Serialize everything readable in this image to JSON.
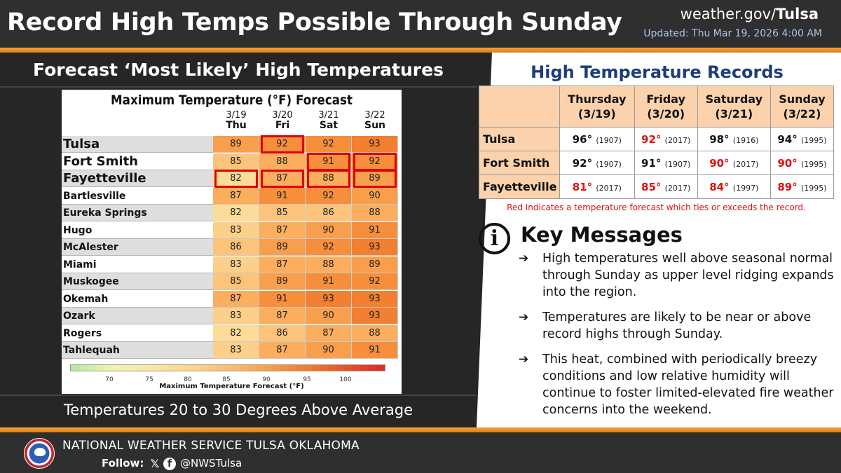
{
  "header": {
    "title": "Record High Temps Possible Through Sunday",
    "site_prefix": "weather.gov/",
    "site_office": "Tulsa",
    "updated": "Updated: Thu Mar 19, 2026 4:00 AM"
  },
  "left": {
    "heading": "Forecast ‘Most Likely’ High Temperatures",
    "footer": "Temperatures 20 to 30 Degrees Above Average"
  },
  "chart_data": {
    "type": "table",
    "title": "Maximum Temperature (°F) Forecast",
    "days": [
      {
        "date": "3/19",
        "day": "Thu"
      },
      {
        "date": "3/20",
        "day": "Fri"
      },
      {
        "date": "3/21",
        "day": "Sat"
      },
      {
        "date": "3/22",
        "day": "Sun"
      }
    ],
    "rows": [
      {
        "city": "Tulsa",
        "values": [
          89,
          92,
          92,
          93
        ]
      },
      {
        "city": "Fort Smith",
        "values": [
          85,
          88,
          91,
          92
        ]
      },
      {
        "city": "Fayetteville",
        "values": [
          82,
          87,
          88,
          89
        ]
      },
      {
        "city": "Bartlesville",
        "values": [
          87,
          91,
          92,
          90
        ]
      },
      {
        "city": "Eureka Springs",
        "values": [
          82,
          85,
          86,
          88
        ]
      },
      {
        "city": "Hugo",
        "values": [
          83,
          87,
          90,
          91
        ]
      },
      {
        "city": "McAlester",
        "values": [
          86,
          89,
          92,
          93
        ]
      },
      {
        "city": "Miami",
        "values": [
          83,
          87,
          88,
          89
        ]
      },
      {
        "city": "Muskogee",
        "values": [
          85,
          89,
          91,
          92
        ]
      },
      {
        "city": "Okemah",
        "values": [
          87,
          91,
          93,
          93
        ]
      },
      {
        "city": "Ozark",
        "values": [
          83,
          87,
          90,
          93
        ]
      },
      {
        "city": "Rogers",
        "values": [
          82,
          86,
          87,
          88
        ]
      },
      {
        "city": "Tahlequah",
        "values": [
          83,
          87,
          90,
          91
        ]
      }
    ],
    "record_highlights": [
      [
        0,
        1
      ],
      [
        1,
        2
      ],
      [
        1,
        3
      ],
      [
        2,
        0
      ],
      [
        2,
        1
      ],
      [
        2,
        2
      ],
      [
        2,
        3
      ]
    ],
    "scale_ticks": [
      "70",
      "75",
      "80",
      "85",
      "90",
      "95",
      "100"
    ],
    "scale_label": "Maximum Temperature Forecast (°F)",
    "colors": {
      "highlight": "#e00000"
    }
  },
  "records": {
    "title": "High Temperature Records",
    "headers": [
      {
        "line1": "Thursday",
        "line2": "(3/19)"
      },
      {
        "line1": "Friday",
        "line2": "(3/20)"
      },
      {
        "line1": "Saturday",
        "line2": "(3/21)"
      },
      {
        "line1": "Sunday",
        "line2": "(3/22)"
      }
    ],
    "rows": [
      {
        "city": "Tulsa",
        "cells": [
          {
            "temp": "96°",
            "year": "(1907)",
            "red": false
          },
          {
            "temp": "92°",
            "year": "(2017)",
            "red": true
          },
          {
            "temp": "98°",
            "year": "(1916)",
            "red": false
          },
          {
            "temp": "94°",
            "year": "(1995)",
            "red": false
          }
        ]
      },
      {
        "city": "Fort Smith",
        "cells": [
          {
            "temp": "92°",
            "year": "(1907)",
            "red": false
          },
          {
            "temp": "91°",
            "year": "(1907)",
            "red": false
          },
          {
            "temp": "90°",
            "year": "(2017)",
            "red": true
          },
          {
            "temp": "90°",
            "year": "(1995)",
            "red": true
          }
        ]
      },
      {
        "city": "Fayetteville",
        "cells": [
          {
            "temp": "81°",
            "year": "(2017)",
            "red": true
          },
          {
            "temp": "85°",
            "year": "(2017)",
            "red": true
          },
          {
            "temp": "84°",
            "year": "(1997)",
            "red": true
          },
          {
            "temp": "89°",
            "year": "(1995)",
            "red": true
          }
        ]
      }
    ],
    "note": "Red Indicates a temperature forecast which ties or exceeds the record."
  },
  "key_messages": {
    "icon": "info-icon",
    "title": "Key Messages",
    "items": [
      "High temperatures well above seasonal normal through Sunday as upper level ridging expands into the region.",
      "Temperatures are likely to be near or above record highs through Sunday.",
      "This heat, combined with periodically breezy conditions and low relative humidity will continue to foster limited-elevated fire weather concerns into the weekend."
    ]
  },
  "footer": {
    "org": "NATIONAL WEATHER SERVICE TULSA OKLAHOMA",
    "follow": "Follow:",
    "handle": "@NWSTulsa"
  },
  "colors": {
    "accent_orange": "#f08a1e",
    "records_title": "#1d3d7a",
    "record_red": "#e01010",
    "table_header": "#fbd2ab"
  }
}
